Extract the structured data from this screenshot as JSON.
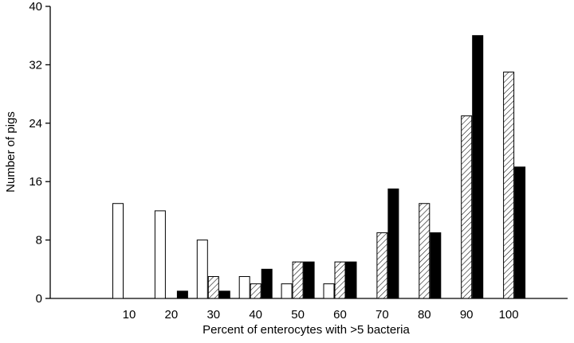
{
  "chart_data": {
    "type": "bar",
    "title": "",
    "xlabel": "Percent of enterocytes with >5 bacteria",
    "ylabel": "Number of pigs",
    "ylim": [
      0,
      40
    ],
    "yticks": [
      "0",
      "8",
      "16",
      "24",
      "32",
      "40"
    ],
    "categories": [
      "10",
      "20",
      "30",
      "40",
      "50",
      "60",
      "70",
      "80",
      "90",
      "100"
    ],
    "series": [
      {
        "fill": "white",
        "values": [
          13,
          12,
          8,
          3,
          2,
          2,
          0,
          0,
          0,
          0
        ]
      },
      {
        "fill": "hatched",
        "values": [
          0,
          0,
          3,
          2,
          5,
          5,
          9,
          13,
          25,
          31
        ]
      },
      {
        "fill": "black",
        "values": [
          0,
          1,
          1,
          4,
          5,
          5,
          15,
          9,
          36,
          18
        ]
      }
    ],
    "grid": false,
    "legend": "none"
  }
}
